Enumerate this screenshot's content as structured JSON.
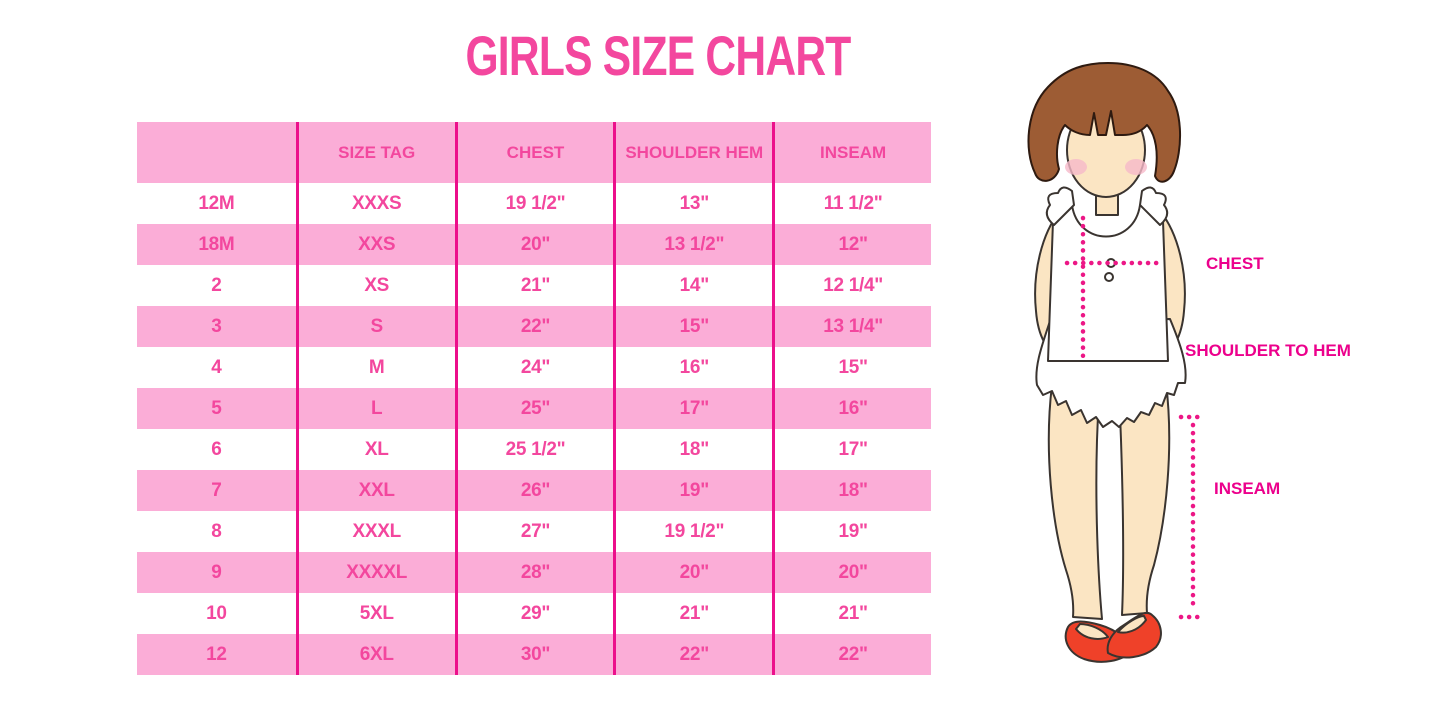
{
  "title": "GIRLS SIZE CHART",
  "chart_data": {
    "type": "table",
    "title": "GIRLS SIZE CHART",
    "columns": [
      "",
      "SIZE TAG",
      "CHEST",
      "SHOULDER HEM",
      "INSEAM"
    ],
    "rows": [
      [
        "12M",
        "XXXS",
        "19 1/2\"",
        "13\"",
        "11 1/2\""
      ],
      [
        "18M",
        "XXS",
        "20\"",
        "13 1/2\"",
        "12\""
      ],
      [
        "2",
        "XS",
        "21\"",
        "14\"",
        "12 1/4\""
      ],
      [
        "3",
        "S",
        "22\"",
        "15\"",
        "13 1/4\""
      ],
      [
        "4",
        "M",
        "24\"",
        "16\"",
        "15\""
      ],
      [
        "5",
        "L",
        "25\"",
        "17\"",
        "16\""
      ],
      [
        "6",
        "XL",
        "25 1/2\"",
        "18\"",
        "17\""
      ],
      [
        "7",
        "XXL",
        "26\"",
        "19\"",
        "18\""
      ],
      [
        "8",
        "XXXL",
        "27\"",
        "19 1/2\"",
        "19\""
      ],
      [
        "9",
        "XXXXL",
        "28\"",
        "20\"",
        "20\""
      ],
      [
        "10",
        "5XL",
        "29\"",
        "21\"",
        "21\""
      ],
      [
        "12",
        "6XL",
        "30\"",
        "22\"",
        "22\""
      ]
    ],
    "annotations": [
      "CHEST",
      "SHOULDER TO HEM",
      "INSEAM"
    ]
  },
  "diagram": {
    "chest_label": "CHEST",
    "shoulder_to_hem_label": "SHOULDER TO HEM",
    "inseam_label": "INSEAM"
  },
  "colors": {
    "title_pink": "#F3479E",
    "row_pink": "#FBADD7",
    "divider_magenta": "#EC0F8B",
    "label_magenta": "#EC008C",
    "dotted_magenta": "#EC1786",
    "hair_brown": "#9D5C34",
    "skin": "#FBE5C3",
    "blush": "#F6B9C9",
    "shoe_red": "#EF4129"
  }
}
